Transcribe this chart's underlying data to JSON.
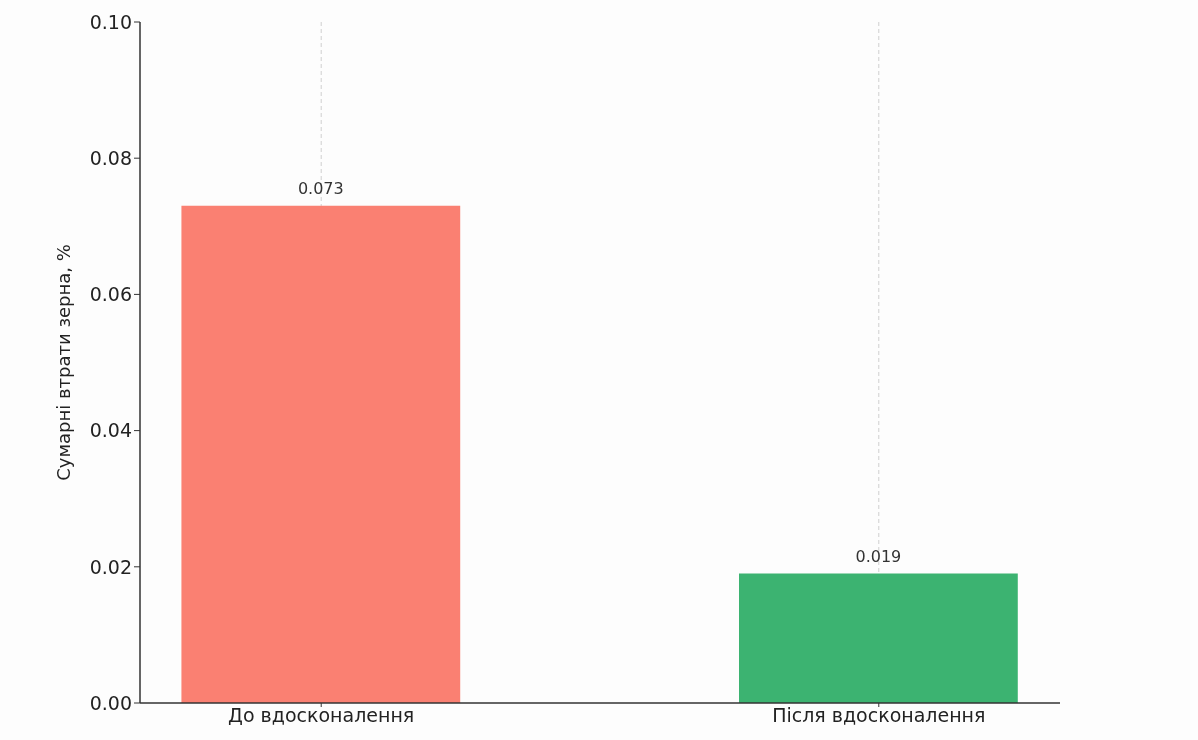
{
  "chart_data": {
    "type": "bar",
    "categories": [
      "До вдосконалення",
      "Після вдосконалення"
    ],
    "values": [
      0.073,
      0.019
    ],
    "colors": [
      "#fa8072",
      "#3cb371"
    ],
    "ylabel": "Сумарні втрати зерна, %",
    "ylim": [
      0,
      0.1
    ],
    "yticks": [
      {
        "value": 0,
        "label": "0.00"
      },
      {
        "value": 0.02,
        "label": "0.02"
      },
      {
        "value": 0.04,
        "label": "0.04"
      },
      {
        "value": 0.06,
        "label": "0.06"
      },
      {
        "value": 0.08,
        "label": "0.08"
      },
      {
        "value": 0.1,
        "label": "0.10"
      }
    ],
    "grid": "x",
    "data_labels": true
  }
}
